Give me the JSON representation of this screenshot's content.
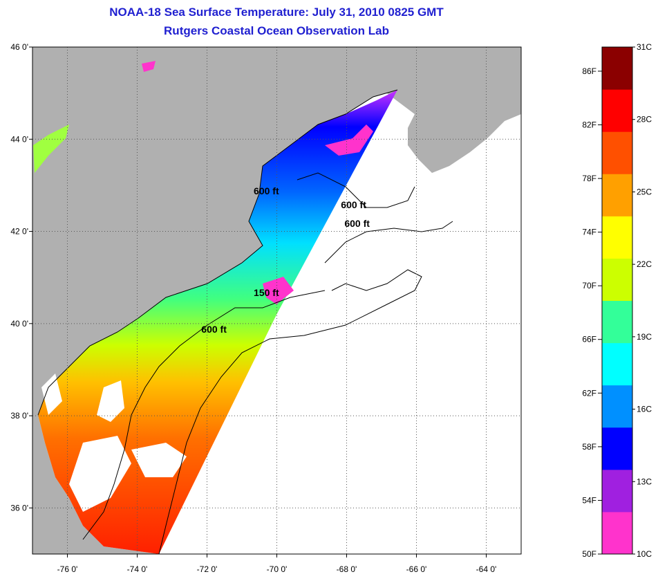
{
  "title": {
    "line1": "NOAA-18 Sea Surface Temperature:  July 31, 2010 0825 GMT",
    "line2": "Rutgers Coastal Ocean Observation Lab"
  },
  "map": {
    "lat_range": [
      35,
      46
    ],
    "lon_range": [
      -77,
      -63
    ],
    "lat_ticks": [
      {
        "value": 46,
        "label": "46 0'"
      },
      {
        "value": 44,
        "label": "44 0'"
      },
      {
        "value": 42,
        "label": "42 0'"
      },
      {
        "value": 40,
        "label": "40 0'"
      },
      {
        "value": 38,
        "label": "38 0'"
      },
      {
        "value": 36,
        "label": "36 0'"
      }
    ],
    "lon_ticks": [
      {
        "value": -76,
        "label": "-76 0'"
      },
      {
        "value": -74,
        "label": "-74 0'"
      },
      {
        "value": -72,
        "label": "-72 0'"
      },
      {
        "value": -70,
        "label": "-70 0'"
      },
      {
        "value": -68,
        "label": "-68 0'"
      },
      {
        "value": -66,
        "label": "-66 0'"
      },
      {
        "value": -64,
        "label": "-64 0'"
      }
    ],
    "grid": "dotted",
    "contour_labels": [
      {
        "text": "600 ft",
        "lon": -70.3,
        "lat": 42.8
      },
      {
        "text": "600 ft",
        "lon": -67.8,
        "lat": 42.5
      },
      {
        "text": "600 ft",
        "lon": -67.7,
        "lat": 42.1
      },
      {
        "text": "150 ft",
        "lon": -70.3,
        "lat": 40.6
      },
      {
        "text": "600 ft",
        "lon": -71.8,
        "lat": 39.8
      }
    ]
  },
  "colorbar": {
    "colors": [
      "#ff33cc",
      "#a020e0",
      "#0000ff",
      "#0090ff",
      "#00ffff",
      "#33ff99",
      "#ccff00",
      "#ffff00",
      "#ffa000",
      "#ff5000",
      "#ff0000",
      "#8b0000"
    ],
    "f_labels": [
      {
        "label": "50F",
        "value": 50
      },
      {
        "label": "54F",
        "value": 54
      },
      {
        "label": "58F",
        "value": 58
      },
      {
        "label": "62F",
        "value": 62
      },
      {
        "label": "66F",
        "value": 66
      },
      {
        "label": "70F",
        "value": 70
      },
      {
        "label": "74F",
        "value": 74
      },
      {
        "label": "78F",
        "value": 78
      },
      {
        "label": "82F",
        "value": 82
      },
      {
        "label": "86F",
        "value": 86
      }
    ],
    "c_labels": [
      {
        "label": "10C",
        "value": 10
      },
      {
        "label": "13C",
        "value": 13
      },
      {
        "label": "16C",
        "value": 16
      },
      {
        "label": "19C",
        "value": 19
      },
      {
        "label": "22C",
        "value": 22
      },
      {
        "label": "25C",
        "value": 25
      },
      {
        "label": "28C",
        "value": 28
      },
      {
        "label": "31C",
        "value": 31
      }
    ]
  },
  "colors": {
    "land": "#b0b0b0",
    "title": "#1f1fd0",
    "ocean_no_data": "#ffffff"
  }
}
